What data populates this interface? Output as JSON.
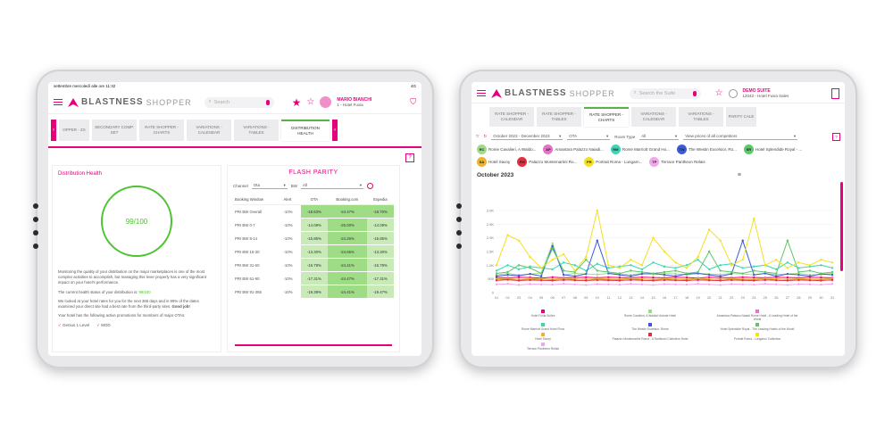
{
  "left": {
    "status_left": "settembre mercoledì alle ore 11:32",
    "status_right": "4G",
    "brand_bold": "BLASTNESS",
    "brand_light": "SHOPPER",
    "search_placeholder": "Search",
    "user_name": "MARIO BIANCHI",
    "user_sub": "1 - Hotel Fuxia",
    "tabs": [
      "OPPER - ZS",
      "SECONDARY COMP. SET",
      "RATE SHOPPER - CHARTS",
      "VARIATIONS - CALENDAR",
      "VARIATIONS - TABLES",
      "DISTRIBUTION HEALTH"
    ],
    "distribution_title": "Distribution Health",
    "score": "99/100",
    "p1": "Monitoring the quality of your distribution on the major marketplaces is one of the most complex activities to accomplish, but managing this lever properly has a very significant impact on your hotel's performance.",
    "p2_prefix": "The current health status of your distribution is: ",
    "p2_value": "99/100",
    "p3_prefix": "We looked at your hotel rates for you for the next 365 days and in 99% of the dates examined your direct site had a best rate from the third-party sites. ",
    "p3_bold": "Good job!",
    "p4": "Your hotel has the following active promotions for members of major OTAs:",
    "promo1": "Genius 1 Level",
    "promo2": "MOD",
    "flash_title": "FLASH PARITY",
    "channel_label": "Channel",
    "channel_value": "Ota",
    "bw_label": "BW",
    "bw_value": "All",
    "table_headers": [
      "Booking Window",
      "Alert",
      "OTA",
      "Booking.com",
      "Expedia"
    ],
    "table_rows": [
      [
        "PRI BW Overall",
        "-10%",
        "-18.63%",
        "-24.47%",
        "-18.70%"
      ],
      [
        "PRI BW 0-7",
        "-10%",
        "-14.09%",
        "-25.00%",
        "-14.09%"
      ],
      [
        "PRI BW 8-14",
        "-10%",
        "-15.85%",
        "-24.26%",
        "-15.85%"
      ],
      [
        "PRI BW 15-30",
        "-10%",
        "-13.30%",
        "-24.65%",
        "-13.30%"
      ],
      [
        "PRI BW 31-60",
        "-10%",
        "-16.79%",
        "-24.41%",
        "-16.79%"
      ],
      [
        "PRI BW 61-90",
        "-10%",
        "-17.31%",
        "-24.47%",
        "-17.31%"
      ],
      [
        "PRI BW 91-365",
        "-10%",
        "-19.38%",
        "-24.41%",
        "-19.47%"
      ]
    ]
  },
  "right": {
    "brand_bold": "BLASTNESS",
    "brand_light": "SHOPPER",
    "search_placeholder": "Search the Suite",
    "user_name": "DEMO SUITE",
    "user_sub": "12043 - Hotel Fuxia Sales",
    "tabs": [
      "RATE SHOPPER - CALENDAR",
      "RATE SHOPPER - TABLES",
      "RATE SHOPPER - CHARTS",
      "VARIATIONS - CALENDAR",
      "VARIATIONS - TABLES",
      "PARITY CALE"
    ],
    "date_range": "October 2023 - December 2023",
    "ota_value": "OTA",
    "room_type_label": "Room Type",
    "room_type_value": "All",
    "competitors_value": "View prices of all competitors",
    "help": "?",
    "competitors": [
      {
        "code": "RC",
        "name": "Rome Cavalieri, A Waldo...",
        "color": "#9fdc86"
      },
      {
        "code": "AP",
        "name": "Amantara Palazzo Naiadi...",
        "color": "#e870c8"
      },
      {
        "code": "RM",
        "name": "Rome Marriott Grand Ho...",
        "color": "#3bd6b5"
      },
      {
        "code": "TW",
        "name": "The Westin Excelsior, Ro...",
        "color": "#3c5bd8"
      },
      {
        "code": "SR",
        "name": "Hotel Splendide Royal - ...",
        "color": "#5dc86a"
      },
      {
        "code": "SA",
        "name": "Hotel Savoy",
        "color": "#f0b030"
      },
      {
        "code": "PM",
        "name": "Palazzo Montemartini Ro...",
        "color": "#e03040"
      },
      {
        "code": "PR",
        "name": "Portrait Roma - Lungarn...",
        "color": "#f4e020"
      },
      {
        "code": "TP",
        "name": "Terrace Pantheon Relais",
        "color": "#f0a8e8"
      }
    ]
  },
  "chart_data": {
    "type": "line",
    "title": "October 2023",
    "x": [
      "01",
      "02",
      "03",
      "04",
      "05",
      "06",
      "07",
      "08",
      "09",
      "10",
      "11",
      "12",
      "13",
      "14",
      "15",
      "16",
      "17",
      "18",
      "19",
      "20",
      "21",
      "22",
      "23",
      "24",
      "25",
      "26",
      "27",
      "28",
      "29",
      "30",
      "31"
    ],
    "ylim": [
      0,
      3000
    ],
    "y_ticks": [
      "0",
      "500",
      "1.0K",
      "1.5K",
      "2.0K",
      "2.5K",
      "3.0K"
    ],
    "series": [
      {
        "name": "Hotel Fuxia Suites",
        "color": "#e6007e",
        "values": [
          550,
          540,
          560,
          550,
          530,
          560,
          540,
          550,
          560,
          540,
          560,
          550,
          540,
          560,
          550,
          540,
          560,
          550,
          530,
          560,
          550,
          540,
          560,
          550,
          540,
          560,
          550,
          540,
          560,
          550,
          540
        ]
      },
      {
        "name": "Rome Cavalieri, A Waldorf Astoria Hotel",
        "color": "#9fdc86",
        "values": [
          650,
          700,
          640,
          680,
          700,
          1800,
          650,
          700,
          680,
          660,
          700,
          680,
          650,
          700,
          660,
          700,
          680,
          650,
          700,
          680,
          660,
          700,
          680,
          650,
          700,
          660,
          680,
          700,
          650,
          660,
          700
        ]
      },
      {
        "name": "Amantara Palazzo Naiadi Rome Hotel - A Leading Hotel of the World",
        "color": "#e870c8",
        "values": [
          450,
          500,
          480,
          460,
          500,
          470,
          450,
          480,
          500,
          460,
          480,
          470,
          450,
          500,
          480,
          460,
          500,
          470,
          450,
          480,
          500,
          460,
          480,
          470,
          450,
          500,
          480,
          460,
          500,
          470,
          450
        ]
      },
      {
        "name": "Rome Marriott Grand Hotel Flora",
        "color": "#3bd6b5",
        "values": [
          800,
          1000,
          850,
          950,
          900,
          850,
          1100,
          1000,
          800,
          1050,
          900,
          950,
          1000,
          850,
          1100,
          950,
          900,
          1000,
          1200,
          850,
          1000,
          1050,
          900,
          950,
          1000,
          850,
          1100,
          900,
          950,
          1000,
          900
        ]
      },
      {
        "name": "The Westin Excelsior, Rome",
        "color": "#3c5bd8",
        "values": [
          600,
          650,
          620,
          680,
          600,
          1700,
          650,
          600,
          680,
          1900,
          700,
          650,
          600,
          680,
          700,
          650,
          600,
          680,
          700,
          650,
          600,
          680,
          1900,
          650,
          700,
          600,
          680,
          650,
          600,
          680,
          650
        ]
      },
      {
        "name": "Hotel Splendide Royal - The Leading Hotels of the World",
        "color": "#5dc86a",
        "values": [
          700,
          750,
          1000,
          900,
          700,
          1600,
          800,
          750,
          1200,
          800,
          750,
          700,
          800,
          750,
          700,
          750,
          800,
          700,
          750,
          1500,
          800,
          750,
          700,
          800,
          750,
          700,
          1900,
          750,
          800,
          700,
          750
        ]
      },
      {
        "name": "Hotel Savoy",
        "color": "#f0b030",
        "values": [
          500,
          520,
          480,
          510,
          500,
          490,
          520,
          500,
          480,
          510,
          500,
          490,
          520,
          500,
          480,
          510,
          500,
          490,
          520,
          500,
          480,
          510,
          500,
          490,
          520,
          500,
          480,
          510,
          500,
          490,
          520
        ]
      },
      {
        "name": "Palazzo Montemartini Roma - A Radisson Collection Hotel",
        "color": "#e03040",
        "values": [
          450,
          470,
          440,
          460,
          450,
          440,
          470,
          450,
          440,
          460,
          450,
          440,
          470,
          450,
          440,
          460,
          450,
          440,
          470,
          450,
          440,
          460,
          450,
          440,
          470,
          450,
          440,
          460,
          450,
          440,
          470
        ]
      },
      {
        "name": "Portrait Roma - Lungarno Collection",
        "color": "#f4e020",
        "values": [
          1000,
          2100,
          1900,
          1300,
          900,
          1200,
          1400,
          800,
          1300,
          3300,
          1000,
          900,
          1200,
          1000,
          2000,
          1500,
          1100,
          900,
          1300,
          2300,
          1900,
          1000,
          1200,
          2700,
          1000,
          1200,
          900,
          1100,
          1000,
          1200,
          1100
        ]
      },
      {
        "name": "Terrace Pantheon Relais",
        "color": "#f0a8e8",
        "values": [
          300,
          320,
          280,
          310,
          300,
          290,
          320,
          300,
          280,
          310,
          300,
          290,
          320,
          300,
          280,
          310,
          300,
          290,
          320,
          300,
          280,
          310,
          300,
          290,
          320,
          300,
          280,
          310,
          300,
          290,
          320
        ]
      }
    ]
  }
}
